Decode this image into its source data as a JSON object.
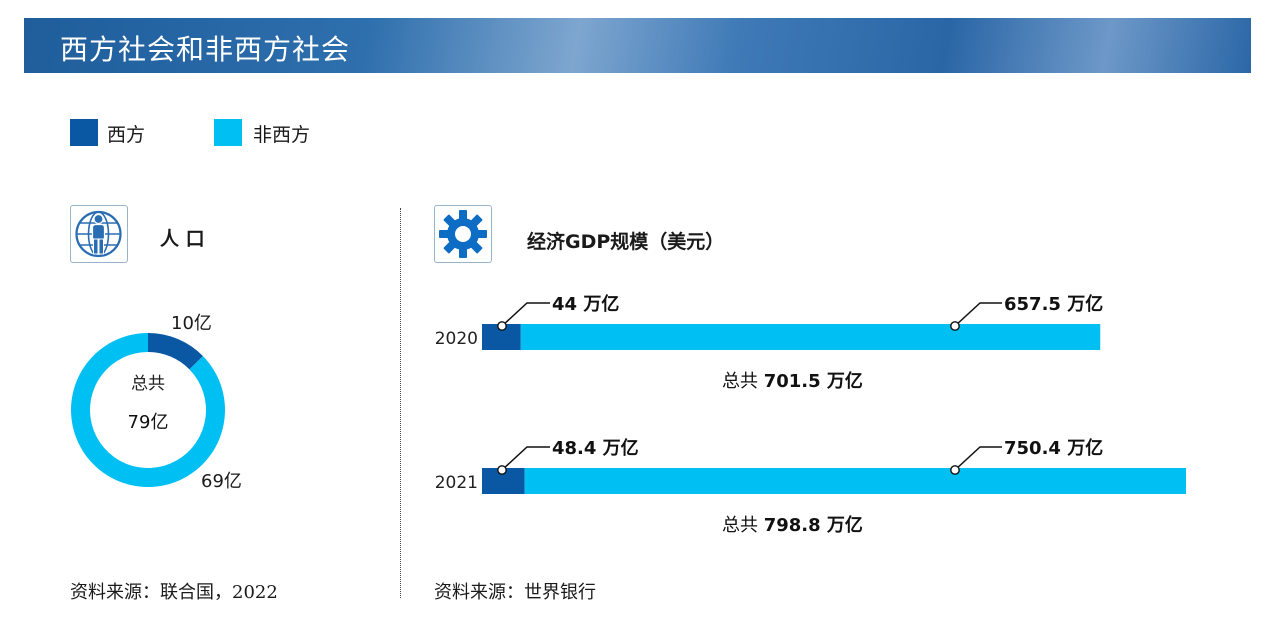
{
  "header": {
    "title": "西方社会和非西方社会"
  },
  "colors": {
    "western": "#0a57a4",
    "non_western": "#00bff3"
  },
  "legend": [
    {
      "label": "西方",
      "color": "#0a57a4"
    },
    {
      "label": "非西方",
      "color": "#00bff3"
    }
  ],
  "population": {
    "title": "人 口",
    "icon": "globe-person-icon",
    "center_label": "总共",
    "center_value": "79亿",
    "western_label": "10亿",
    "non_western_label": "69亿",
    "source": "资料来源：联合国，2022"
  },
  "gdp": {
    "title": "经济GDP规模（美元）",
    "icon": "gear-icon",
    "source": "资料来源：世界银行"
  },
  "chart_data": [
    {
      "type": "pie",
      "title": "人 口",
      "categories": [
        "西方",
        "非西方"
      ],
      "values": [
        10,
        69
      ],
      "unit": "亿",
      "total": 79
    },
    {
      "type": "bar",
      "title": "经济GDP规模（美元）",
      "orientation": "horizontal",
      "stacked": true,
      "categories": [
        "2020",
        "2021"
      ],
      "series": [
        {
          "name": "西方",
          "values": [
            44,
            48.4
          ],
          "labels": [
            "44 万亿",
            "48.4 万亿"
          ]
        },
        {
          "name": "非西方",
          "values": [
            657.5,
            750.4
          ],
          "labels": [
            "657.5 万亿",
            "750.4 万亿"
          ]
        }
      ],
      "totals": [
        701.5,
        798.8
      ],
      "total_prefix": "总共",
      "total_unit": "万亿",
      "total_texts": [
        "701.5 万亿",
        "798.8 万亿"
      ],
      "xlim": [
        0,
        798.8
      ]
    }
  ]
}
